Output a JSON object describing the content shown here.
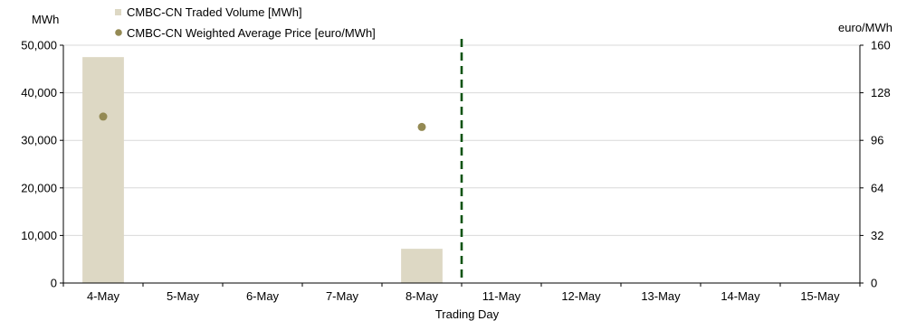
{
  "chart_data": {
    "type": "bar",
    "title": "",
    "xlabel": "Trading Day",
    "ylabel_left": "MWh",
    "ylabel_right": "euro/MWh",
    "categories": [
      "4-May",
      "5-May",
      "6-May",
      "7-May",
      "8-May",
      "11-May",
      "12-May",
      "13-May",
      "14-May",
      "15-May"
    ],
    "y_left": {
      "lim": [
        0,
        50000
      ],
      "ticks": [
        0,
        10000,
        20000,
        30000,
        40000,
        50000
      ],
      "tick_labels": [
        "0",
        "10,000",
        "20,000",
        "30,000",
        "40,000",
        "50,000"
      ]
    },
    "y_right": {
      "lim": [
        0,
        160
      ],
      "ticks": [
        0,
        32,
        64,
        96,
        128,
        160
      ],
      "tick_labels": [
        "0",
        "32",
        "64",
        "96",
        "128",
        "160"
      ]
    },
    "grid": true,
    "legend_position": "top-left",
    "series": [
      {
        "name": "CMBC-CN Traded Volume [MWh]",
        "type": "bar",
        "axis": "left",
        "color": "#ddd8c4",
        "values": [
          47500,
          null,
          null,
          null,
          7200,
          null,
          null,
          null,
          null,
          null
        ]
      },
      {
        "name": "CMBC-CN Weighted Average Price [euro/MWh]",
        "type": "scatter",
        "axis": "right",
        "color": "#948a54",
        "values": [
          112,
          null,
          null,
          null,
          105,
          null,
          null,
          null,
          null,
          null
        ]
      }
    ],
    "annotations": [
      {
        "type": "vertical-dashed-line",
        "between": [
          "8-May",
          "11-May"
        ],
        "color": "#0b5311"
      }
    ]
  }
}
